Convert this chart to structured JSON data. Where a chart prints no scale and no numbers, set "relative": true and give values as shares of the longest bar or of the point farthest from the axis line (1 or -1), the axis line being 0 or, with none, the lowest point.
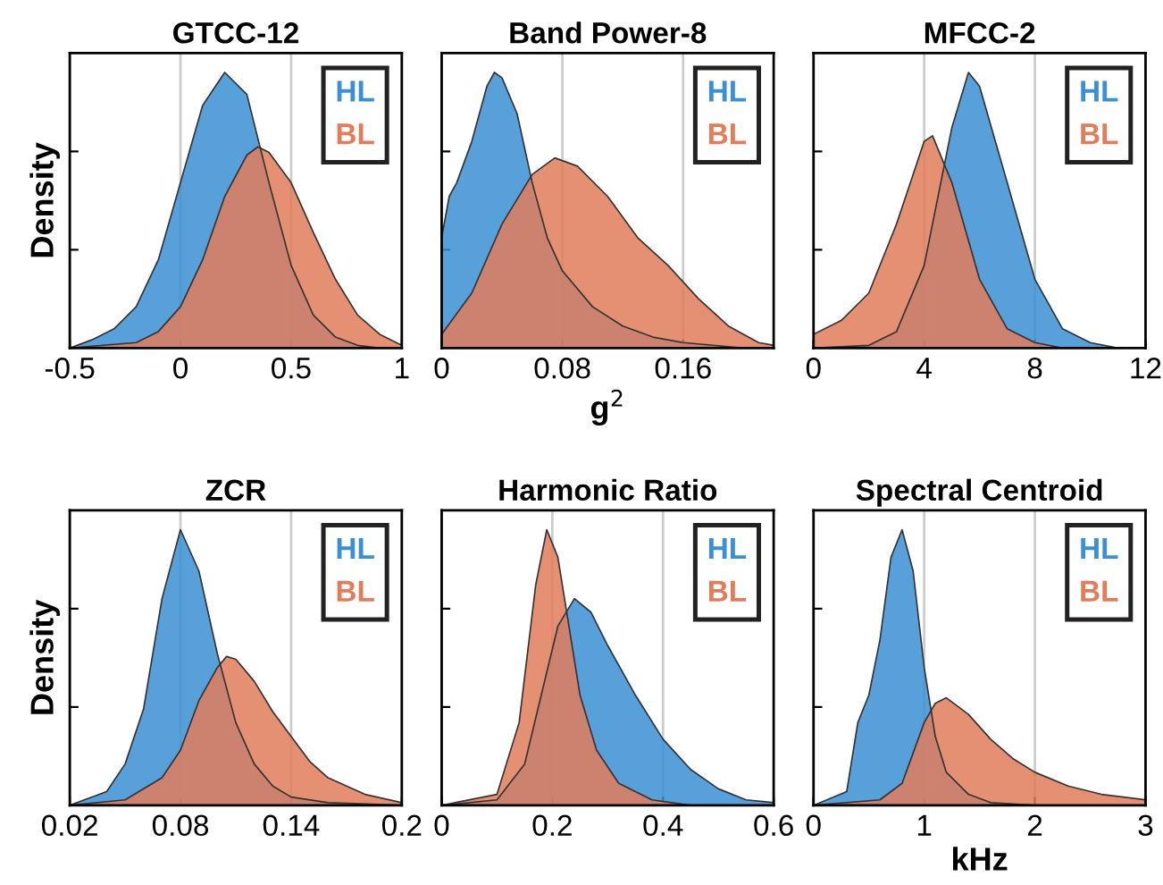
{
  "chart_data": [
    {
      "type": "area",
      "title": "GTCC-12",
      "ylabel": "Density",
      "relative": true,
      "xlim": [
        -0.5,
        1
      ],
      "xticks": [
        -0.5,
        0,
        0.5,
        1
      ],
      "grid": "x",
      "legend": "top right",
      "tick_labels": "x",
      "series": [
        {
          "name": "HL",
          "color": "#3b8fd4",
          "x": [
            -0.5,
            -0.4,
            -0.3,
            -0.2,
            -0.1,
            0,
            0.1,
            0.2,
            0.3,
            0.4,
            0.5,
            0.6,
            0.7,
            0.8,
            0.9,
            1
          ],
          "values": [
            0,
            0.03,
            0.07,
            0.15,
            0.32,
            0.6,
            0.88,
            1.0,
            0.92,
            0.6,
            0.3,
            0.12,
            0.04,
            0.01,
            0,
            0
          ]
        },
        {
          "name": "BL",
          "color": "#e07d5a",
          "x": [
            -0.5,
            -0.2,
            -0.1,
            0,
            0.1,
            0.2,
            0.3,
            0.35,
            0.4,
            0.5,
            0.6,
            0.7,
            0.8,
            0.9,
            1
          ],
          "values": [
            0,
            0.02,
            0.06,
            0.15,
            0.32,
            0.55,
            0.7,
            0.73,
            0.71,
            0.6,
            0.42,
            0.25,
            0.12,
            0.05,
            0.01
          ]
        }
      ]
    },
    {
      "type": "area",
      "title": "Band Power-8",
      "xlabel": "g$^{2}$",
      "relative": true,
      "xlim": [
        0,
        0.22
      ],
      "xticks": [
        0,
        0.08,
        0.16
      ],
      "grid": "x",
      "legend": "top right",
      "tick_labels": "x",
      "series": [
        {
          "name": "HL",
          "color": "#3b8fd4",
          "x": [
            0,
            0.005,
            0.01,
            0.02,
            0.03,
            0.035,
            0.04,
            0.05,
            0.06,
            0.07,
            0.08,
            0.1,
            0.12,
            0.14,
            0.16,
            0.2,
            0.22
          ],
          "values": [
            0.4,
            0.55,
            0.6,
            0.75,
            0.95,
            1.0,
            0.98,
            0.85,
            0.6,
            0.4,
            0.28,
            0.15,
            0.08,
            0.04,
            0.02,
            0,
            0
          ]
        },
        {
          "name": "BL",
          "color": "#e07d5a",
          "x": [
            0,
            0.02,
            0.04,
            0.06,
            0.075,
            0.09,
            0.11,
            0.13,
            0.15,
            0.17,
            0.19,
            0.21,
            0.22
          ],
          "values": [
            0.05,
            0.2,
            0.45,
            0.63,
            0.69,
            0.66,
            0.55,
            0.4,
            0.3,
            0.18,
            0.08,
            0.02,
            0.01
          ]
        }
      ]
    },
    {
      "type": "area",
      "title": "MFCC-2",
      "relative": true,
      "xlim": [
        0,
        12
      ],
      "xticks": [
        0,
        4,
        8,
        12
      ],
      "grid": "x",
      "legend": "top right",
      "tick_labels": "x",
      "series": [
        {
          "name": "HL",
          "color": "#3b8fd4",
          "x": [
            0,
            2,
            3,
            4,
            5,
            5.6,
            6,
            7,
            8,
            9,
            10,
            11,
            12
          ],
          "values": [
            0,
            0.01,
            0.06,
            0.3,
            0.8,
            1.0,
            0.95,
            0.6,
            0.25,
            0.07,
            0.02,
            0,
            0
          ]
        },
        {
          "name": "BL",
          "color": "#e07d5a",
          "x": [
            0,
            1,
            2,
            3,
            4,
            4.3,
            5,
            6,
            7,
            8,
            9,
            12
          ],
          "values": [
            0.05,
            0.1,
            0.2,
            0.45,
            0.75,
            0.77,
            0.6,
            0.25,
            0.07,
            0.02,
            0,
            0
          ]
        }
      ]
    },
    {
      "type": "area",
      "title": "ZCR",
      "ylabel": "Density",
      "relative": true,
      "xlim": [
        0.02,
        0.2
      ],
      "xticks": [
        0.02,
        0.08,
        0.14,
        0.2
      ],
      "grid": "x",
      "legend": "top right",
      "tick_labels": "x",
      "series": [
        {
          "name": "HL",
          "color": "#3b8fd4",
          "x": [
            0.02,
            0.04,
            0.05,
            0.06,
            0.07,
            0.08,
            0.09,
            0.1,
            0.11,
            0.12,
            0.13,
            0.14,
            0.16,
            0.2
          ],
          "values": [
            0,
            0.05,
            0.15,
            0.35,
            0.75,
            1.0,
            0.85,
            0.55,
            0.3,
            0.15,
            0.07,
            0.03,
            0.01,
            0
          ]
        },
        {
          "name": "BL",
          "color": "#e07d5a",
          "x": [
            0.02,
            0.05,
            0.07,
            0.08,
            0.09,
            0.1,
            0.105,
            0.11,
            0.12,
            0.13,
            0.14,
            0.15,
            0.16,
            0.18,
            0.2
          ],
          "values": [
            0,
            0.02,
            0.1,
            0.2,
            0.38,
            0.5,
            0.54,
            0.53,
            0.45,
            0.34,
            0.25,
            0.16,
            0.1,
            0.04,
            0.01
          ]
        }
      ]
    },
    {
      "type": "area",
      "title": "Harmonic Ratio",
      "relative": true,
      "xlim": [
        0,
        0.6
      ],
      "xticks": [
        0,
        0.2,
        0.4,
        0.6
      ],
      "grid": "x",
      "legend": "top right",
      "tick_labels": "x",
      "series": [
        {
          "name": "HL",
          "color": "#3b8fd4",
          "x": [
            0,
            0.1,
            0.15,
            0.18,
            0.21,
            0.24,
            0.27,
            0.3,
            0.35,
            0.4,
            0.45,
            0.5,
            0.55,
            0.6
          ],
          "values": [
            0,
            0.02,
            0.15,
            0.4,
            0.65,
            0.75,
            0.7,
            0.58,
            0.4,
            0.24,
            0.13,
            0.06,
            0.02,
            0.01
          ]
        },
        {
          "name": "BL",
          "color": "#e07d5a",
          "x": [
            0,
            0.1,
            0.14,
            0.17,
            0.19,
            0.21,
            0.23,
            0.25,
            0.28,
            0.32,
            0.38,
            0.45,
            0.6
          ],
          "values": [
            0,
            0.04,
            0.3,
            0.8,
            1.0,
            0.9,
            0.65,
            0.4,
            0.2,
            0.08,
            0.02,
            0,
            0
          ]
        }
      ]
    },
    {
      "type": "area",
      "title": "Spectral Centroid",
      "xlabel": "kHz",
      "relative": true,
      "xlim": [
        0,
        3
      ],
      "xticks": [
        0,
        1,
        2,
        3
      ],
      "grid": "x",
      "legend": "top right",
      "tick_labels": "x",
      "series": [
        {
          "name": "HL",
          "color": "#3b8fd4",
          "x": [
            0,
            0.3,
            0.4,
            0.5,
            0.6,
            0.7,
            0.8,
            0.9,
            1.0,
            1.1,
            1.2,
            1.4,
            1.6,
            2,
            3
          ],
          "values": [
            0,
            0.05,
            0.3,
            0.4,
            0.6,
            0.9,
            1.0,
            0.85,
            0.5,
            0.25,
            0.12,
            0.04,
            0.01,
            0,
            0
          ]
        },
        {
          "name": "BL",
          "color": "#e07d5a",
          "x": [
            0,
            0.6,
            0.8,
            1.0,
            1.1,
            1.2,
            1.4,
            1.6,
            1.8,
            2,
            2.3,
            2.6,
            3
          ],
          "values": [
            0,
            0.02,
            0.08,
            0.3,
            0.37,
            0.39,
            0.33,
            0.24,
            0.17,
            0.12,
            0.07,
            0.04,
            0.02
          ]
        }
      ]
    }
  ]
}
